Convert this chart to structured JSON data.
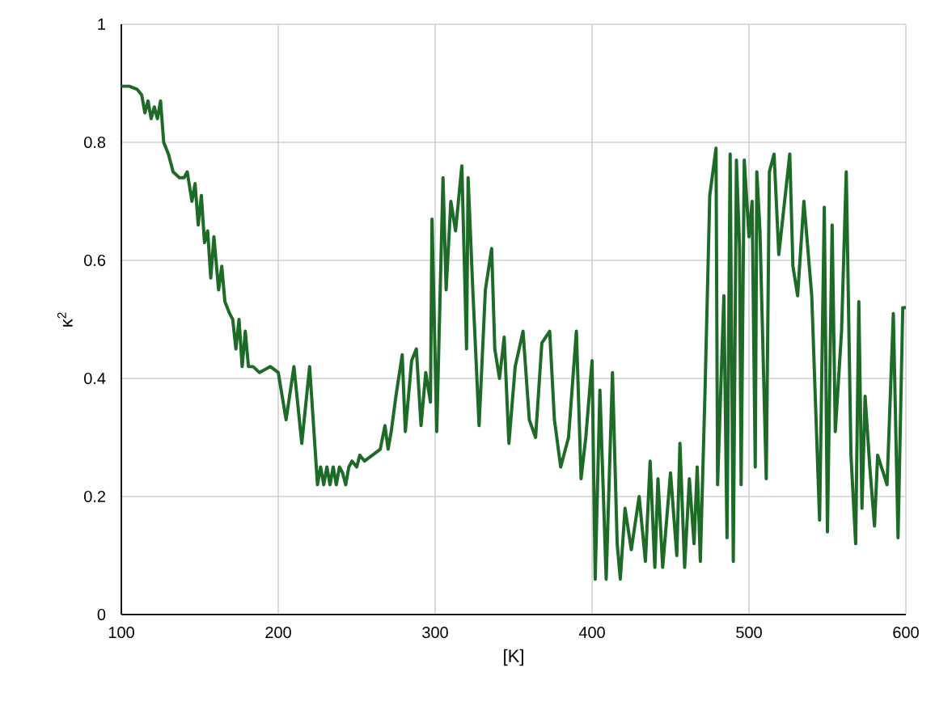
{
  "chart_data": {
    "type": "line",
    "xlabel": "[K]",
    "ylabel": "κ$^{2}$",
    "xlim": [
      100,
      600
    ],
    "xticks": [
      100,
      200,
      300,
      400,
      500,
      600
    ],
    "ylim": [
      0,
      1
    ],
    "yticks": [
      0,
      {
        "value": 0.2,
        "label": "0.2"
      },
      {
        "value": 0.4,
        "label": "0.4"
      },
      {
        "value": 0.6,
        "label": "0.6"
      },
      {
        "value": 0.8,
        "label": "0.8"
      },
      1
    ],
    "grid": true,
    "marker": "none",
    "line_style": "solid",
    "series": [
      {
        "color": "#1e6b28",
        "x": [
          100,
          105,
          110,
          113,
          115,
          117,
          119,
          121,
          123,
          125,
          127,
          130,
          133,
          137,
          140,
          142,
          145,
          147,
          149,
          151,
          153,
          155,
          157,
          159,
          162,
          164,
          166,
          169,
          171,
          173,
          175,
          177,
          179,
          181,
          184,
          188,
          195,
          200,
          205,
          210,
          215,
          220,
          225,
          227,
          229,
          231,
          233,
          235,
          237,
          239,
          241,
          243,
          245,
          247,
          250,
          252,
          255,
          260,
          265,
          268,
          270,
          272,
          275,
          279,
          281,
          285,
          288,
          291,
          294,
          297,
          298,
          301,
          305,
          307,
          310,
          313,
          317,
          320,
          321,
          324,
          328,
          332,
          336,
          338,
          341,
          344,
          347,
          351,
          356,
          360,
          364,
          368,
          373,
          376,
          380,
          385,
          390,
          393,
          396,
          400,
          402,
          405,
          409,
          413,
          416,
          418,
          421,
          425,
          430,
          434,
          437,
          440,
          442,
          445,
          450,
          454,
          456,
          459,
          462,
          465,
          467,
          469,
          472,
          475,
          479,
          480,
          484,
          486,
          488,
          490,
          492,
          494,
          495,
          497,
          500,
          502,
          504,
          505,
          507,
          511,
          513,
          516,
          519,
          526,
          528,
          531,
          535,
          540,
          545,
          548,
          550,
          553,
          555,
          559,
          562,
          565,
          568,
          570,
          572,
          574,
          577,
          580,
          582,
          588,
          592,
          595,
          598,
          600
        ],
        "values": [
          0.895,
          0.895,
          0.89,
          0.88,
          0.85,
          0.87,
          0.84,
          0.86,
          0.84,
          0.87,
          0.8,
          0.78,
          0.75,
          0.74,
          0.74,
          0.75,
          0.7,
          0.73,
          0.66,
          0.71,
          0.63,
          0.65,
          0.57,
          0.64,
          0.55,
          0.59,
          0.53,
          0.51,
          0.5,
          0.45,
          0.5,
          0.42,
          0.48,
          0.42,
          0.42,
          0.41,
          0.42,
          0.41,
          0.33,
          0.42,
          0.29,
          0.42,
          0.22,
          0.25,
          0.22,
          0.25,
          0.22,
          0.25,
          0.22,
          0.25,
          0.24,
          0.22,
          0.25,
          0.26,
          0.25,
          0.27,
          0.26,
          0.27,
          0.28,
          0.32,
          0.28,
          0.31,
          0.37,
          0.44,
          0.31,
          0.43,
          0.45,
          0.32,
          0.41,
          0.36,
          0.67,
          0.31,
          0.74,
          0.55,
          0.7,
          0.65,
          0.76,
          0.45,
          0.74,
          0.55,
          0.32,
          0.55,
          0.62,
          0.45,
          0.4,
          0.47,
          0.29,
          0.42,
          0.48,
          0.33,
          0.3,
          0.46,
          0.48,
          0.33,
          0.25,
          0.3,
          0.48,
          0.23,
          0.3,
          0.43,
          0.06,
          0.38,
          0.06,
          0.41,
          0.12,
          0.06,
          0.18,
          0.11,
          0.2,
          0.09,
          0.26,
          0.08,
          0.23,
          0.08,
          0.24,
          0.1,
          0.29,
          0.08,
          0.23,
          0.12,
          0.25,
          0.09,
          0.38,
          0.71,
          0.79,
          0.22,
          0.54,
          0.13,
          0.78,
          0.09,
          0.77,
          0.62,
          0.22,
          0.77,
          0.64,
          0.7,
          0.25,
          0.75,
          0.65,
          0.23,
          0.75,
          0.78,
          0.61,
          0.78,
          0.59,
          0.54,
          0.7,
          0.54,
          0.16,
          0.69,
          0.14,
          0.66,
          0.31,
          0.48,
          0.75,
          0.27,
          0.12,
          0.53,
          0.18,
          0.37,
          0.25,
          0.15,
          0.27,
          0.22,
          0.51,
          0.13,
          0.52,
          0.52
        ]
      }
    ]
  }
}
